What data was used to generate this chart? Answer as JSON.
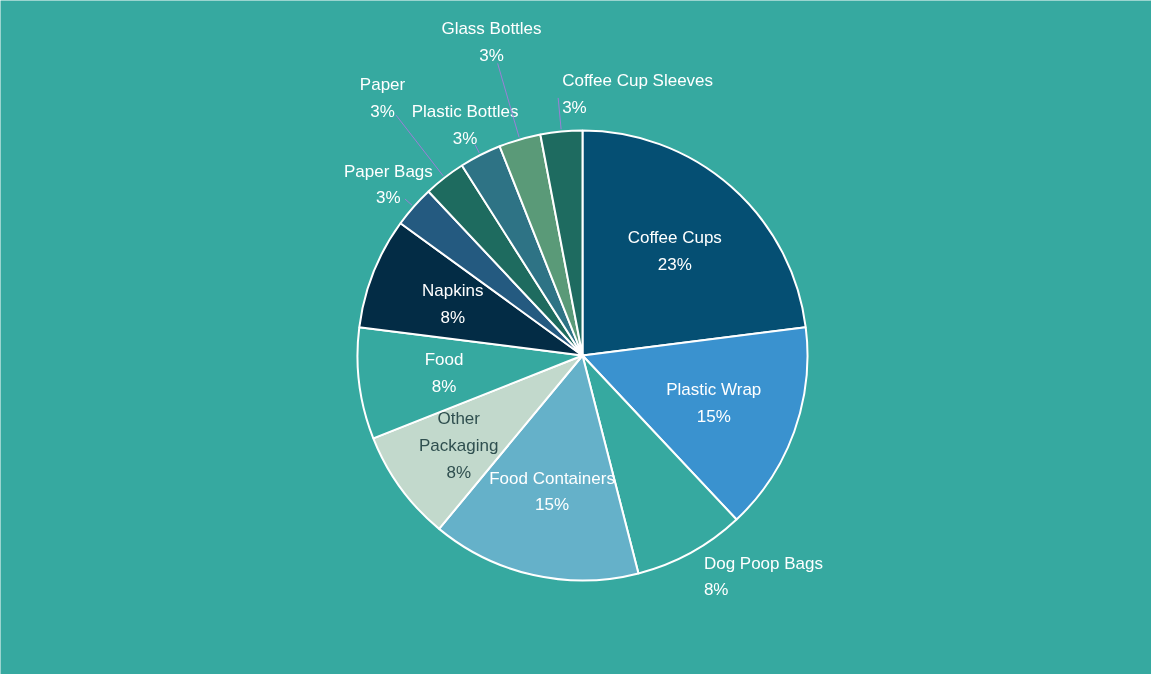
{
  "chart_data": {
    "type": "pie",
    "categories": [
      "Coffee Cups",
      "Plastic Wrap",
      "Dog Poop Bags",
      "Food Containers",
      "Other Packaging",
      "Food",
      "Napkins",
      "Paper Bags",
      "Paper",
      "Plastic Bottles",
      "Glass Bottles",
      "Coffee Cup Sleeves"
    ],
    "values": [
      23,
      15,
      8,
      15,
      8,
      8,
      8,
      3,
      3,
      3,
      3,
      3
    ],
    "value_labels": [
      "23%",
      "15%",
      "8%",
      "15%",
      "8%",
      "8%",
      "8%",
      "3%",
      "3%",
      "3%",
      "3%",
      "3%"
    ],
    "colors": [
      "#054f73",
      "#3a92cf",
      "#36a9a0",
      "#65b1c9",
      "#c2d9cc",
      "#36a9a0",
      "#032c45",
      "#245a80",
      "#1e6b5f",
      "#2e7385",
      "#5a9a78",
      "#1e6b60"
    ]
  }
}
